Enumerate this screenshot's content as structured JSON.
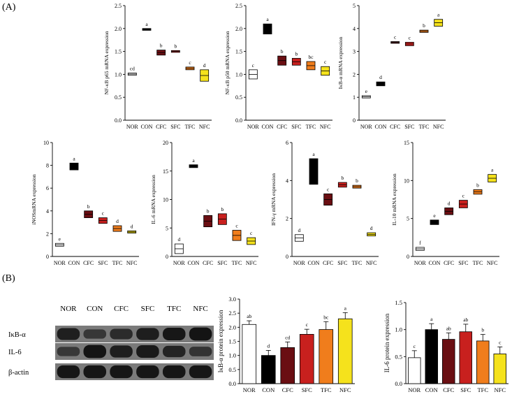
{
  "panel_labels": {
    "a": "(A)",
    "b": "(B)"
  },
  "group_colors": [
    "#ffffff",
    "#000000",
    "#6a0e12",
    "#c8201e",
    "#f07d1c",
    "#f5e21c"
  ],
  "western_blot": {
    "lanes": [
      "NOR",
      "CON",
      "CFC",
      "SFC",
      "TFC",
      "NFC"
    ],
    "rows": [
      "IκB-α",
      "IL-6",
      "β-actin"
    ],
    "band_intensity": [
      [
        0.8,
        0.45,
        0.62,
        0.82,
        0.9,
        0.95
      ],
      [
        0.45,
        0.95,
        0.82,
        0.88,
        0.72,
        0.5
      ],
      [
        0.92,
        0.92,
        0.92,
        0.92,
        0.92,
        0.92
      ]
    ]
  },
  "chart_data": [
    {
      "type": "box",
      "title": "",
      "xlabel": "",
      "ylabel": "NF-κB p65 mRNA expression",
      "categories": [
        "NOR",
        "CON",
        "CFC",
        "SFC",
        "TFC",
        "NFC"
      ],
      "ylim": [
        0,
        2.5
      ],
      "yticks": [
        "0.0",
        "0.5",
        "1.0",
        "1.5",
        "2.0",
        "2.5"
      ],
      "low": [
        0.98,
        1.96,
        1.42,
        1.48,
        1.1,
        0.85
      ],
      "high": [
        1.03,
        2.0,
        1.53,
        1.52,
        1.16,
        1.1
      ],
      "letters": [
        "cd",
        "a",
        "b",
        "b",
        "c",
        "d"
      ]
    },
    {
      "type": "box",
      "title": "",
      "xlabel": "",
      "ylabel": "NF-κB p50 mRNA expression",
      "categories": [
        "NOR",
        "CON",
        "CFC",
        "SFC",
        "TFC",
        "NFC"
      ],
      "ylim": [
        0,
        2.5
      ],
      "yticks": [
        "0.0",
        "0.5",
        "1.0",
        "1.5",
        "2.0",
        "2.5"
      ],
      "low": [
        0.9,
        1.88,
        1.2,
        1.2,
        1.1,
        0.98
      ],
      "high": [
        1.1,
        2.1,
        1.4,
        1.35,
        1.28,
        1.17
      ],
      "letters": [
        "c",
        "a",
        "b",
        "b",
        "bc",
        "c"
      ]
    },
    {
      "type": "box",
      "title": "",
      "xlabel": "",
      "ylabel": "IκB-α mRNA expression",
      "categories": [
        "NOR",
        "CON",
        "CFC",
        "SFC",
        "TFC",
        "NFC"
      ],
      "ylim": [
        0,
        5
      ],
      "yticks": [
        "0",
        "1",
        "2",
        "3",
        "4",
        "5"
      ],
      "low": [
        0.97,
        1.5,
        3.37,
        3.25,
        3.83,
        4.1
      ],
      "high": [
        1.07,
        1.67,
        3.43,
        3.4,
        3.93,
        4.4
      ],
      "letters": [
        "e",
        "d",
        "c",
        "c",
        "b",
        "a"
      ]
    },
    {
      "type": "box",
      "title": "",
      "xlabel": "",
      "ylabel": "iNOSmRNA expression",
      "categories": [
        "NOR",
        "CON",
        "CFC",
        "SFC",
        "TFC",
        "NFC"
      ],
      "ylim": [
        0,
        10
      ],
      "yticks": [
        "0",
        "2",
        "4",
        "6",
        "8",
        "10"
      ],
      "low": [
        0.9,
        7.6,
        3.4,
        2.9,
        2.2,
        2.05
      ],
      "high": [
        1.15,
        8.2,
        4.0,
        3.4,
        2.7,
        2.25
      ],
      "letters": [
        "e",
        "a",
        "b",
        "c",
        "d",
        "d"
      ]
    },
    {
      "type": "box",
      "title": "",
      "xlabel": "",
      "ylabel": "IL-6 mRNA expression",
      "categories": [
        "NOR",
        "CON",
        "CFC",
        "SFC",
        "TFC",
        "NFC"
      ],
      "ylim": [
        0,
        20
      ],
      "yticks": [
        "0",
        "5",
        "10",
        "15",
        "20"
      ],
      "low": [
        0.5,
        15.6,
        5.2,
        5.6,
        2.8,
        2.1
      ],
      "high": [
        2.2,
        16.1,
        7.2,
        7.5,
        4.6,
        3.3
      ],
      "letters": [
        "d",
        "a",
        "b",
        "b",
        "c",
        "c"
      ]
    },
    {
      "type": "box",
      "title": "",
      "xlabel": "",
      "ylabel": "IFN-γ mRNA expression",
      "categories": [
        "NOR",
        "CON",
        "CFC",
        "SFC",
        "TFC",
        "NFC"
      ],
      "ylim": [
        0,
        6
      ],
      "yticks": [
        "0",
        "2",
        "4",
        "6"
      ],
      "low": [
        0.8,
        3.8,
        2.7,
        3.65,
        3.6,
        1.08
      ],
      "high": [
        1.15,
        5.15,
        3.3,
        3.9,
        3.75,
        1.25
      ],
      "letters": [
        "d",
        "a",
        "c",
        "b",
        "b",
        "d"
      ]
    },
    {
      "type": "box",
      "title": "",
      "xlabel": "",
      "ylabel": "IL-10 mRNA expression",
      "categories": [
        "NOR",
        "CON",
        "CFC",
        "SFC",
        "TFC",
        "NFC"
      ],
      "ylim": [
        0,
        15
      ],
      "yticks": [
        "0",
        "5",
        "10",
        "15"
      ],
      "low": [
        0.8,
        4.2,
        5.5,
        6.4,
        8.2,
        9.8
      ],
      "high": [
        1.2,
        4.8,
        6.4,
        7.4,
        8.8,
        10.8
      ],
      "letters": [
        "f",
        "e",
        "d",
        "c",
        "b",
        "a"
      ]
    },
    {
      "type": "bar",
      "title": "",
      "xlabel": "",
      "ylabel": "IκB-α protein expression",
      "categories": [
        "NOR",
        "CON",
        "CFC",
        "SFC",
        "TFC",
        "NFC"
      ],
      "ylim": [
        0,
        3.0
      ],
      "yticks": [
        "0.0",
        "0.5",
        "1.0",
        "1.5",
        "2.0",
        "2.5",
        "3.0"
      ],
      "values": [
        2.1,
        1.0,
        1.28,
        1.75,
        1.92,
        2.3
      ],
      "errors": [
        0.13,
        0.18,
        0.2,
        0.18,
        0.28,
        0.22
      ],
      "letters": [
        "ab",
        "d",
        "cd",
        "c",
        "bc",
        "a"
      ]
    },
    {
      "type": "bar",
      "title": "",
      "xlabel": "",
      "ylabel": "IL-6 protein expression",
      "categories": [
        "NOR",
        "CON",
        "CFC",
        "SFC",
        "TFC",
        "NFC"
      ],
      "ylim": [
        0,
        1.5
      ],
      "yticks": [
        "0.0",
        "0.5",
        "1.0",
        "1.5"
      ],
      "values": [
        0.48,
        1.0,
        0.82,
        0.96,
        0.79,
        0.55
      ],
      "errors": [
        0.13,
        0.11,
        0.12,
        0.14,
        0.12,
        0.13
      ],
      "letters": [
        "c",
        "a",
        "ab",
        "ab",
        "b",
        "c"
      ]
    }
  ]
}
